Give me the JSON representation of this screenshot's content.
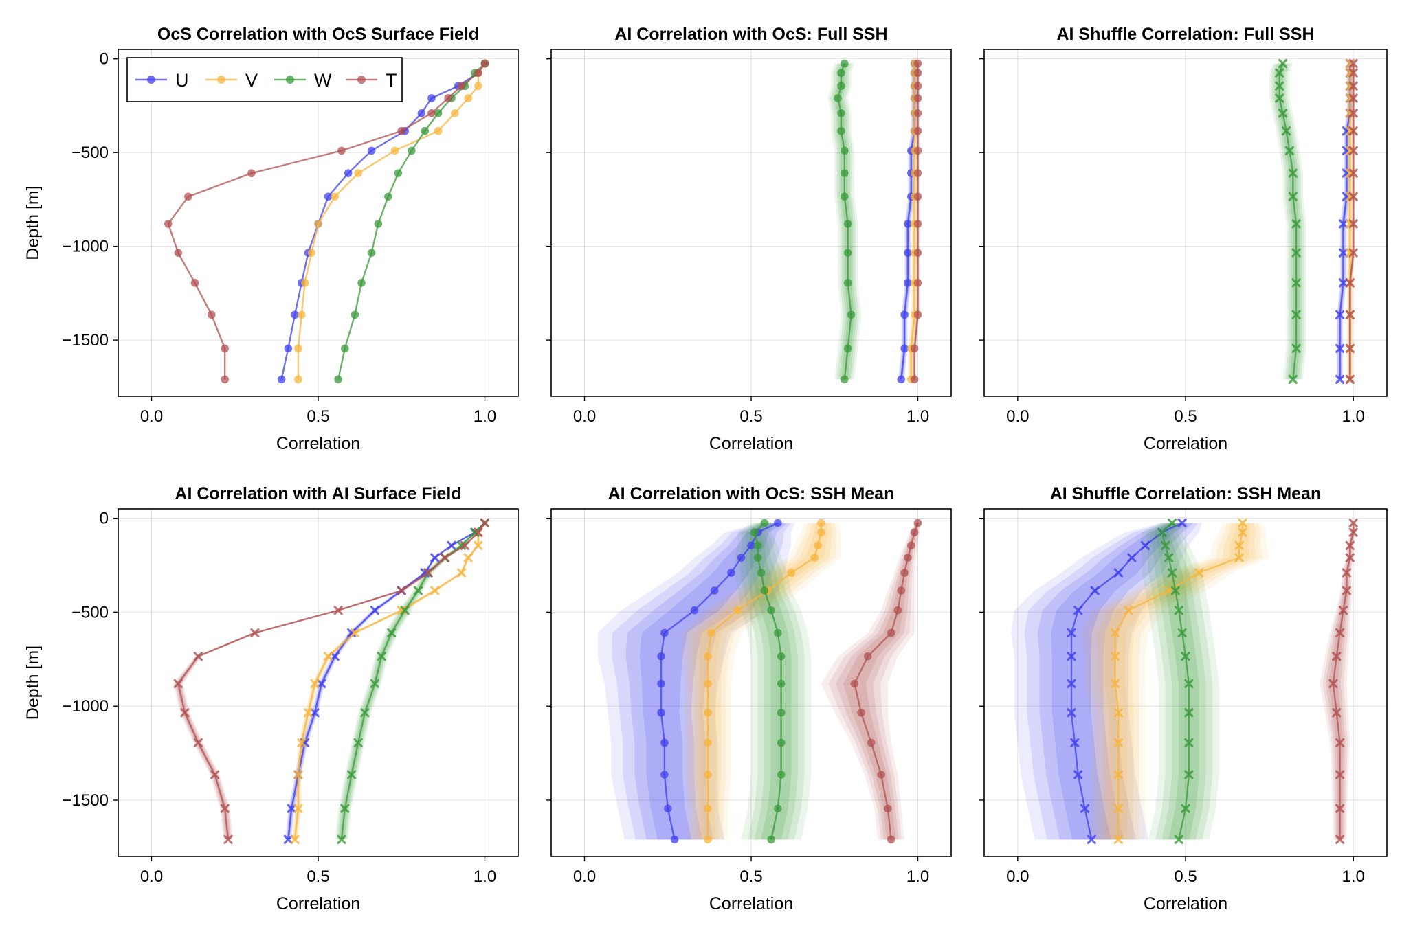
{
  "figure": {
    "xlabel": "Correlation",
    "ylabel": "Depth [m]"
  },
  "colors": {
    "U": "#4040ee",
    "V": "#f7b43c",
    "W": "#3a9a3a",
    "T": "#b05050"
  },
  "legend": {
    "placement": "top-left",
    "entries": [
      {
        "name": "U",
        "label": "U"
      },
      {
        "name": "V",
        "label": "V"
      },
      {
        "name": "W",
        "label": "W"
      },
      {
        "name": "T",
        "label": "T"
      }
    ]
  },
  "chart_data": [
    {
      "type": "line",
      "title": "OcS Correlation with OcS Surface Field",
      "xlabel": "Correlation",
      "ylabel": "Depth [m]",
      "xlim": [
        -0.1,
        1.1
      ],
      "ylim": [
        -1800,
        50
      ],
      "xticks": [
        "0.0",
        "0.5",
        "1.0"
      ],
      "yticks": [
        "0",
        "−500",
        "−1000",
        "−1500"
      ],
      "marker": "circle",
      "legend": true,
      "depths": [
        -25,
        -75,
        -145,
        -210,
        -290,
        -385,
        -490,
        -610,
        -735,
        -880,
        -1035,
        -1195,
        -1365,
        -1545,
        -1710
      ],
      "series": [
        {
          "name": "U",
          "values": [
            1.0,
            0.98,
            0.92,
            0.84,
            0.81,
            0.76,
            0.66,
            0.59,
            0.53,
            0.5,
            0.47,
            0.45,
            0.43,
            0.41,
            0.39
          ],
          "band": []
        },
        {
          "name": "V",
          "values": [
            1.0,
            0.98,
            0.98,
            0.95,
            0.91,
            0.86,
            0.73,
            0.62,
            0.55,
            0.5,
            0.48,
            0.46,
            0.45,
            0.44,
            0.44
          ],
          "band": []
        },
        {
          "name": "W",
          "values": [
            1.0,
            0.97,
            0.94,
            0.9,
            0.86,
            0.82,
            0.78,
            0.74,
            0.71,
            0.68,
            0.66,
            0.63,
            0.61,
            0.58,
            0.56
          ],
          "band": []
        },
        {
          "name": "T",
          "values": [
            1.0,
            0.98,
            0.93,
            0.89,
            0.84,
            0.75,
            0.57,
            0.3,
            0.11,
            0.05,
            0.08,
            0.13,
            0.18,
            0.22,
            0.22
          ],
          "band": []
        }
      ]
    },
    {
      "type": "line",
      "title": "AI Correlation with OcS: Full SSH",
      "xlabel": "Correlation",
      "ylabel": "",
      "xlim": [
        -0.1,
        1.1
      ],
      "ylim": [
        -1800,
        50
      ],
      "xticks": [
        "0.0",
        "0.5",
        "1.0"
      ],
      "yticks": [],
      "marker": "circle",
      "legend": false,
      "depths": [
        -25,
        -75,
        -145,
        -210,
        -290,
        -385,
        -490,
        -610,
        -735,
        -880,
        -1035,
        -1195,
        -1365,
        -1545,
        -1710
      ],
      "series": [
        {
          "name": "U",
          "values": [
            0.99,
            0.99,
            0.99,
            0.99,
            0.99,
            0.99,
            0.98,
            0.98,
            0.98,
            0.97,
            0.97,
            0.97,
            0.96,
            0.96,
            0.95
          ],
          "band": [
            0.01,
            0.01,
            0.01,
            0.01,
            0.01,
            0.01,
            0.01,
            0.01,
            0.01,
            0.01,
            0.01,
            0.01,
            0.01,
            0.01,
            0.01
          ]
        },
        {
          "name": "V",
          "values": [
            0.99,
            0.99,
            0.99,
            0.99,
            0.99,
            0.99,
            0.99,
            0.99,
            0.99,
            0.99,
            0.99,
            0.99,
            0.99,
            0.98,
            0.98
          ],
          "band": [
            0.01,
            0.01,
            0.01,
            0.01,
            0.01,
            0.01,
            0.01,
            0.01,
            0.01,
            0.01,
            0.01,
            0.01,
            0.01,
            0.01,
            0.01
          ]
        },
        {
          "name": "W",
          "values": [
            0.78,
            0.77,
            0.77,
            0.76,
            0.77,
            0.77,
            0.78,
            0.78,
            0.78,
            0.79,
            0.79,
            0.79,
            0.8,
            0.79,
            0.78
          ],
          "band": [
            0.03,
            0.03,
            0.03,
            0.03,
            0.03,
            0.03,
            0.03,
            0.03,
            0.03,
            0.03,
            0.03,
            0.03,
            0.03,
            0.03,
            0.03
          ]
        },
        {
          "name": "T",
          "values": [
            1.0,
            1.0,
            1.0,
            1.0,
            1.0,
            1.0,
            1.0,
            1.0,
            1.0,
            1.0,
            1.0,
            1.0,
            1.0,
            0.99,
            0.99
          ],
          "band": [
            0.005,
            0.005,
            0.005,
            0.005,
            0.005,
            0.005,
            0.005,
            0.005,
            0.005,
            0.005,
            0.005,
            0.005,
            0.005,
            0.005,
            0.005
          ]
        }
      ]
    },
    {
      "type": "line",
      "title": "AI Shuffle Correlation: Full SSH",
      "xlabel": "Correlation",
      "ylabel": "",
      "xlim": [
        -0.1,
        1.1
      ],
      "ylim": [
        -1800,
        50
      ],
      "xticks": [
        "0.0",
        "0.5",
        "1.0"
      ],
      "yticks": [],
      "marker": "x",
      "legend": false,
      "depths": [
        -25,
        -75,
        -145,
        -210,
        -290,
        -385,
        -490,
        -610,
        -735,
        -880,
        -1035,
        -1195,
        -1365,
        -1545,
        -1710
      ],
      "series": [
        {
          "name": "U",
          "values": [
            0.99,
            0.99,
            0.99,
            0.99,
            0.99,
            0.98,
            0.98,
            0.98,
            0.98,
            0.97,
            0.97,
            0.97,
            0.96,
            0.96,
            0.96
          ],
          "band": [
            0.01,
            0.01,
            0.01,
            0.01,
            0.01,
            0.01,
            0.01,
            0.01,
            0.01,
            0.01,
            0.01,
            0.01,
            0.01,
            0.01,
            0.01
          ]
        },
        {
          "name": "V",
          "values": [
            0.99,
            0.99,
            0.99,
            0.99,
            0.99,
            0.99,
            0.99,
            0.99,
            0.99,
            0.99,
            0.99,
            0.99,
            0.99,
            0.99,
            0.99
          ],
          "band": [
            0.01,
            0.01,
            0.01,
            0.01,
            0.01,
            0.01,
            0.01,
            0.01,
            0.01,
            0.01,
            0.01,
            0.01,
            0.01,
            0.01,
            0.01
          ]
        },
        {
          "name": "W",
          "values": [
            0.79,
            0.78,
            0.78,
            0.78,
            0.79,
            0.8,
            0.81,
            0.82,
            0.82,
            0.83,
            0.83,
            0.83,
            0.83,
            0.83,
            0.82
          ],
          "band": [
            0.03,
            0.03,
            0.03,
            0.03,
            0.03,
            0.03,
            0.03,
            0.03,
            0.03,
            0.03,
            0.03,
            0.03,
            0.03,
            0.03,
            0.03
          ]
        },
        {
          "name": "T",
          "values": [
            1.0,
            1.0,
            1.0,
            1.0,
            1.0,
            1.0,
            1.0,
            1.0,
            1.0,
            1.0,
            1.0,
            0.99,
            0.99,
            0.99,
            0.99
          ],
          "band": [
            0.005,
            0.005,
            0.005,
            0.005,
            0.005,
            0.005,
            0.005,
            0.005,
            0.005,
            0.005,
            0.005,
            0.005,
            0.005,
            0.005,
            0.005
          ]
        }
      ]
    },
    {
      "type": "line",
      "title": "AI Correlation with AI Surface Field",
      "xlabel": "Correlation",
      "ylabel": "Depth [m]",
      "xlim": [
        -0.1,
        1.1
      ],
      "ylim": [
        -1800,
        50
      ],
      "xticks": [
        "0.0",
        "0.5",
        "1.0"
      ],
      "yticks": [
        "0",
        "−500",
        "−1000",
        "−1500"
      ],
      "marker": "x",
      "legend": false,
      "depths": [
        -25,
        -75,
        -145,
        -210,
        -290,
        -385,
        -490,
        -610,
        -735,
        -880,
        -1035,
        -1195,
        -1365,
        -1545,
        -1710
      ],
      "series": [
        {
          "name": "U",
          "values": [
            1.0,
            0.97,
            0.9,
            0.85,
            0.82,
            0.75,
            0.67,
            0.6,
            0.55,
            0.51,
            0.49,
            0.46,
            0.44,
            0.42,
            0.41
          ],
          "band": [
            0.0,
            0.005,
            0.005,
            0.005,
            0.005,
            0.01,
            0.01,
            0.01,
            0.01,
            0.01,
            0.01,
            0.01,
            0.01,
            0.01,
            0.01
          ]
        },
        {
          "name": "V",
          "values": [
            1.0,
            0.98,
            0.98,
            0.95,
            0.93,
            0.85,
            0.75,
            0.61,
            0.53,
            0.49,
            0.47,
            0.45,
            0.44,
            0.44,
            0.43
          ],
          "band": [
            0.0,
            0.005,
            0.005,
            0.005,
            0.005,
            0.01,
            0.01,
            0.01,
            0.01,
            0.01,
            0.01,
            0.01,
            0.01,
            0.01,
            0.01
          ]
        },
        {
          "name": "W",
          "values": [
            1.0,
            0.97,
            0.93,
            0.88,
            0.83,
            0.8,
            0.76,
            0.72,
            0.69,
            0.67,
            0.64,
            0.62,
            0.6,
            0.58,
            0.57
          ],
          "band": [
            0.0,
            0.005,
            0.01,
            0.01,
            0.015,
            0.015,
            0.02,
            0.02,
            0.02,
            0.02,
            0.02,
            0.02,
            0.02,
            0.02,
            0.02
          ]
        },
        {
          "name": "T",
          "values": [
            1.0,
            0.98,
            0.94,
            0.88,
            0.83,
            0.75,
            0.56,
            0.31,
            0.14,
            0.08,
            0.1,
            0.14,
            0.19,
            0.22,
            0.23
          ],
          "band": [
            0.0,
            0.005,
            0.005,
            0.01,
            0.01,
            0.01,
            0.01,
            0.01,
            0.01,
            0.015,
            0.015,
            0.015,
            0.015,
            0.015,
            0.015
          ]
        }
      ]
    },
    {
      "type": "line",
      "title": "AI Correlation with OcS: SSH Mean",
      "xlabel": "Correlation",
      "ylabel": "",
      "xlim": [
        -0.1,
        1.1
      ],
      "ylim": [
        -1800,
        50
      ],
      "xticks": [
        "0.0",
        "0.5",
        "1.0"
      ],
      "yticks": [],
      "marker": "circle",
      "legend": false,
      "depths": [
        -25,
        -75,
        -145,
        -210,
        -290,
        -385,
        -490,
        -610,
        -735,
        -880,
        -1035,
        -1195,
        -1365,
        -1545,
        -1710
      ],
      "series": [
        {
          "name": "U",
          "values": [
            0.58,
            0.52,
            0.5,
            0.47,
            0.44,
            0.39,
            0.33,
            0.24,
            0.23,
            0.23,
            0.23,
            0.24,
            0.24,
            0.25,
            0.27
          ],
          "band": [
            0.05,
            0.1,
            0.12,
            0.14,
            0.16,
            0.19,
            0.22,
            0.2,
            0.19,
            0.17,
            0.16,
            0.16,
            0.16,
            0.15,
            0.15
          ]
        },
        {
          "name": "V",
          "values": [
            0.71,
            0.71,
            0.7,
            0.69,
            0.62,
            0.55,
            0.46,
            0.38,
            0.37,
            0.37,
            0.37,
            0.37,
            0.37,
            0.37,
            0.37
          ],
          "band": [
            0.05,
            0.06,
            0.07,
            0.08,
            0.09,
            0.1,
            0.1,
            0.09,
            0.08,
            0.07,
            0.07,
            0.07,
            0.07,
            0.06,
            0.06
          ]
        },
        {
          "name": "W",
          "values": [
            0.54,
            0.51,
            0.52,
            0.52,
            0.53,
            0.54,
            0.56,
            0.58,
            0.59,
            0.59,
            0.59,
            0.59,
            0.59,
            0.58,
            0.56
          ],
          "band": [
            0.04,
            0.05,
            0.06,
            0.07,
            0.08,
            0.08,
            0.09,
            0.09,
            0.09,
            0.09,
            0.09,
            0.09,
            0.09,
            0.09,
            0.09
          ]
        },
        {
          "name": "T",
          "values": [
            1.0,
            0.99,
            0.98,
            0.97,
            0.96,
            0.95,
            0.94,
            0.92,
            0.85,
            0.81,
            0.83,
            0.86,
            0.89,
            0.91,
            0.92
          ],
          "band": [
            0.01,
            0.015,
            0.02,
            0.025,
            0.03,
            0.04,
            0.05,
            0.07,
            0.09,
            0.1,
            0.08,
            0.06,
            0.05,
            0.04,
            0.04
          ]
        }
      ]
    },
    {
      "type": "line",
      "title": "AI Shuffle Correlation: SSH Mean",
      "xlabel": "Correlation",
      "ylabel": "",
      "xlim": [
        -0.1,
        1.1
      ],
      "ylim": [
        -1800,
        50
      ],
      "xticks": [
        "0.0",
        "0.5",
        "1.0"
      ],
      "yticks": [],
      "marker": "x",
      "legend": false,
      "depths": [
        -25,
        -75,
        -145,
        -210,
        -290,
        -385,
        -490,
        -610,
        -735,
        -880,
        -1035,
        -1195,
        -1365,
        -1545,
        -1710
      ],
      "series": [
        {
          "name": "U",
          "values": [
            0.49,
            0.43,
            0.38,
            0.34,
            0.3,
            0.23,
            0.18,
            0.16,
            0.16,
            0.16,
            0.16,
            0.17,
            0.18,
            0.2,
            0.22
          ],
          "band": [
            0.06,
            0.11,
            0.13,
            0.15,
            0.17,
            0.18,
            0.19,
            0.18,
            0.17,
            0.17,
            0.17,
            0.17,
            0.17,
            0.17,
            0.17
          ]
        },
        {
          "name": "V",
          "values": [
            0.67,
            0.67,
            0.66,
            0.66,
            0.54,
            0.45,
            0.33,
            0.29,
            0.29,
            0.29,
            0.3,
            0.3,
            0.3,
            0.3,
            0.3
          ],
          "band": [
            0.06,
            0.07,
            0.08,
            0.09,
            0.1,
            0.11,
            0.11,
            0.1,
            0.09,
            0.09,
            0.08,
            0.08,
            0.08,
            0.08,
            0.08
          ]
        },
        {
          "name": "W",
          "values": [
            0.46,
            0.43,
            0.44,
            0.45,
            0.46,
            0.47,
            0.48,
            0.49,
            0.5,
            0.51,
            0.51,
            0.51,
            0.51,
            0.5,
            0.48
          ],
          "band": [
            0.04,
            0.06,
            0.07,
            0.08,
            0.09,
            0.09,
            0.09,
            0.09,
            0.09,
            0.09,
            0.09,
            0.09,
            0.09,
            0.09,
            0.09
          ]
        },
        {
          "name": "T",
          "values": [
            1.0,
            1.0,
            0.99,
            0.99,
            0.98,
            0.98,
            0.97,
            0.96,
            0.95,
            0.94,
            0.95,
            0.96,
            0.96,
            0.96,
            0.96
          ],
          "band": [
            0.005,
            0.007,
            0.01,
            0.012,
            0.014,
            0.018,
            0.022,
            0.03,
            0.035,
            0.04,
            0.035,
            0.03,
            0.025,
            0.022,
            0.02
          ]
        }
      ]
    }
  ]
}
